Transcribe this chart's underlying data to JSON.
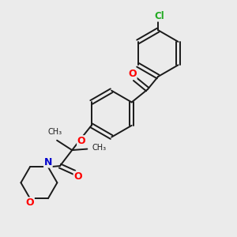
{
  "bg_color": "#ebebeb",
  "bond_color": "#1a1a1a",
  "atom_colors": {
    "O": "#ff0000",
    "N": "#0000cc",
    "Cl": "#22aa22"
  }
}
